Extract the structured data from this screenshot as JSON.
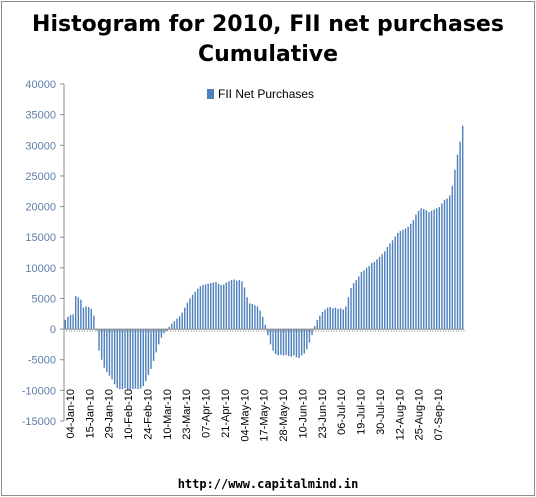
{
  "title_line1": "Histogram for 2010, FII net purchases",
  "title_line2": "Cumulative",
  "footer": "http://www.capitalmind.in",
  "chart_data": {
    "type": "bar",
    "title": "Histogram for 2010, FII net purchases Cumulative",
    "xlabel": "",
    "ylabel": "",
    "ylim": [
      -15000,
      40000
    ],
    "yticks": [
      40000,
      35000,
      30000,
      25000,
      20000,
      15000,
      10000,
      5000,
      0,
      -5000,
      -10000,
      -15000
    ],
    "grid": false,
    "legend_position": "top-center",
    "bar_color": "#4f81bd",
    "x_tick_labels": [
      "04-Jan-10",
      "15-Jan-10",
      "29-Jan-10",
      "10-Feb-10",
      "24-Feb-10",
      "10-Mar-10",
      "23-Mar-10",
      "07-Apr-10",
      "21-Apr-10",
      "04-May-10",
      "17-May-10",
      "28-May-10",
      "10-Jun-10",
      "23-Jun-10",
      "06-Jul-10",
      "19-Jul-10",
      "30-Jul-10",
      "12-Aug-10",
      "25-Aug-10",
      "07-Sep-10"
    ],
    "series": [
      {
        "name": "FII Net Purchases",
        "values": [
          1500,
          2000,
          2300,
          2400,
          5400,
          5200,
          4800,
          3500,
          3700,
          3600,
          3300,
          2200,
          -200,
          -3500,
          -5000,
          -6300,
          -7000,
          -7600,
          -8200,
          -9000,
          -9600,
          -9800,
          -9800,
          -9700,
          -9900,
          -9900,
          -9800,
          -9700,
          -9800,
          -9700,
          -9300,
          -8500,
          -7500,
          -6500,
          -5200,
          -3800,
          -2500,
          -1400,
          -700,
          -300,
          400,
          900,
          1300,
          1700,
          2100,
          2700,
          3500,
          4300,
          5000,
          5600,
          6100,
          6600,
          7000,
          7200,
          7300,
          7400,
          7500,
          7600,
          7700,
          7400,
          7200,
          7300,
          7600,
          7800,
          8000,
          8100,
          7900,
          8000,
          7800,
          6800,
          5200,
          4200,
          4100,
          3900,
          3700,
          3000,
          2000,
          700,
          -1000,
          -2500,
          -3500,
          -4100,
          -4300,
          -4200,
          -4300,
          -4200,
          -4400,
          -4500,
          -4300,
          -4600,
          -4700,
          -4300,
          -4000,
          -3300,
          -2200,
          -1000,
          500,
          1500,
          2200,
          2800,
          3200,
          3500,
          3600,
          3400,
          3500,
          3300,
          3400,
          3200,
          3700,
          5200,
          6700,
          7500,
          8000,
          8600,
          9300,
          9600,
          10000,
          10300,
          10800,
          11000,
          11400,
          11800,
          12200,
          12700,
          13400,
          14000,
          14500,
          15100,
          15700,
          16000,
          16200,
          16400,
          16700,
          17200,
          17800,
          18700,
          19300,
          19700,
          19600,
          19400,
          19100,
          19300,
          19500,
          19700,
          19900,
          20500,
          21100,
          21300,
          21800,
          23400,
          26000,
          28500,
          30600,
          33200
        ]
      }
    ]
  }
}
